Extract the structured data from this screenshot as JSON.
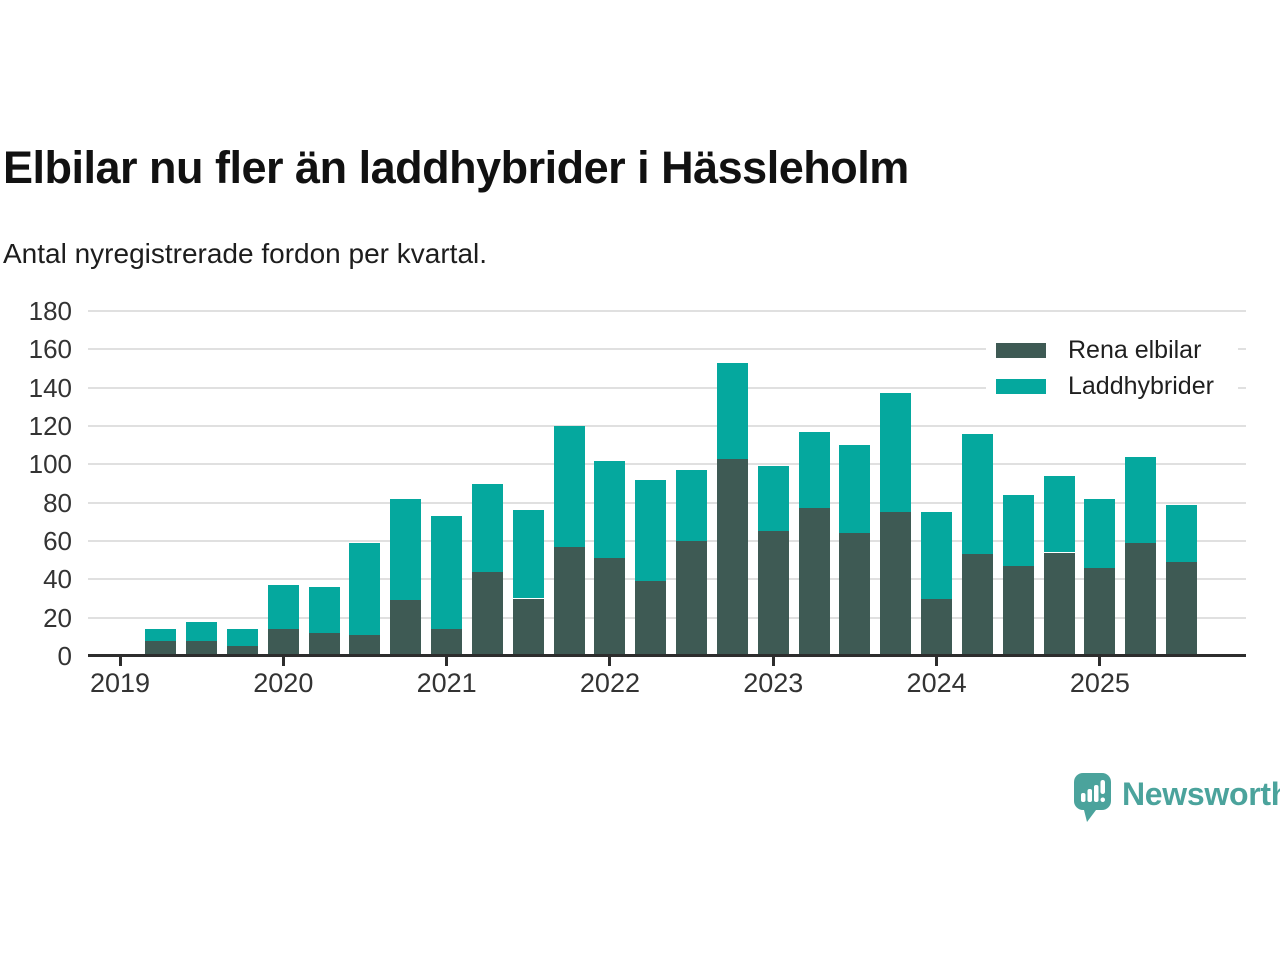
{
  "header": {
    "title": "Elbilar nu fler än laddhybrider i Hässleholm",
    "subtitle": "Antal nyregistrerade fordon per kvartal."
  },
  "chart_data": {
    "type": "bar",
    "stacked": true,
    "title": "Elbilar nu fler än laddhybrider i Hässleholm",
    "subtitle": "Antal nyregistrerade fordon per kvartal.",
    "categories": [
      "2019-Q2",
      "2019-Q3",
      "2019-Q4",
      "2020-Q1",
      "2020-Q2",
      "2020-Q3",
      "2020-Q4",
      "2021-Q1",
      "2021-Q2",
      "2021-Q3",
      "2021-Q4",
      "2022-Q1",
      "2022-Q2",
      "2022-Q3",
      "2022-Q4",
      "2023-Q1",
      "2023-Q2",
      "2023-Q3",
      "2023-Q4",
      "2024-Q1",
      "2024-Q2",
      "2024-Q3",
      "2024-Q4",
      "2025-Q1",
      "2025-Q2",
      "2025-Q3"
    ],
    "series": [
      {
        "name": "Rena elbilar",
        "color": "#3e5a54",
        "values": [
          8,
          8,
          5,
          14,
          12,
          11,
          29,
          14,
          44,
          30,
          57,
          51,
          39,
          60,
          103,
          65,
          77,
          64,
          75,
          30,
          53,
          47,
          54,
          46,
          59,
          49
        ]
      },
      {
        "name": "Laddhybrider",
        "color": "#05a89e",
        "values": [
          6,
          10,
          9,
          23,
          24,
          48,
          53,
          59,
          46,
          46,
          63,
          51,
          53,
          37,
          50,
          34,
          40,
          46,
          62,
          45,
          63,
          37,
          40,
          36,
          45,
          30
        ]
      }
    ],
    "totals": [
      14,
      18,
      14,
      37,
      36,
      59,
      82,
      73,
      90,
      76,
      120,
      102,
      92,
      97,
      153,
      99,
      117,
      110,
      137,
      75,
      116,
      84,
      94,
      82,
      104,
      79
    ],
    "ylim": [
      0,
      180
    ],
    "yticks": [
      0,
      20,
      40,
      60,
      80,
      100,
      120,
      140,
      160,
      180
    ],
    "xtick_years": [
      "2019",
      "2020",
      "2021",
      "2022",
      "2023",
      "2024",
      "2025"
    ],
    "grid": true,
    "legend_position": "top-right"
  },
  "branding": {
    "name": "Newsworthy",
    "color": "#4ba39c"
  }
}
